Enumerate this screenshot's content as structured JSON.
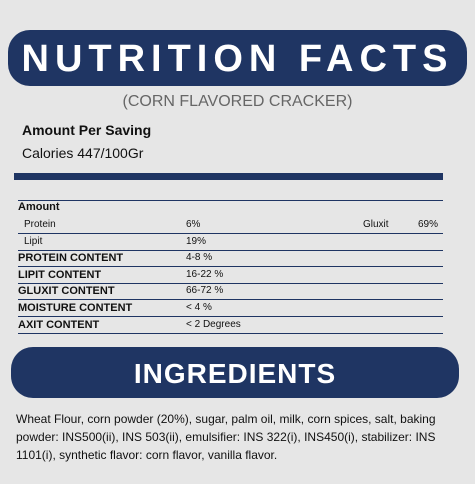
{
  "header": {
    "title": "NUTRITION FACTS",
    "subtitle": "(CORN FLAVORED CRACKER)"
  },
  "summary": {
    "heading": "Amount Per Saving",
    "calories": "Calories 447/100Gr"
  },
  "table": {
    "header": "Amount",
    "rows": [
      [
        "Protein",
        "6%",
        "Gluxit",
        "69%"
      ],
      [
        "Lipit",
        "19%"
      ],
      [
        "PROTEIN CONTENT",
        "4-8 %"
      ],
      [
        "LIPIT CONTENT",
        "16-22 %"
      ],
      [
        "GLUXIT CONTENT",
        "66-72 %"
      ],
      [
        "MOISTURE CONTENT",
        "< 4 %"
      ],
      [
        "AXIT CONTENT",
        "< 2 Degrees"
      ]
    ]
  },
  "ingredients": {
    "title": "INGREDIENTS",
    "text": "Wheat Flour, corn powder (20%), sugar, palm oil, milk, corn spices, salt, baking powder: INS500(ii), INS 503(ii), emulsifier: INS 322(i), INS450(i), stabilizer: INS 1101(i), synthetic flavor: corn flavor, vanilla flavor."
  }
}
